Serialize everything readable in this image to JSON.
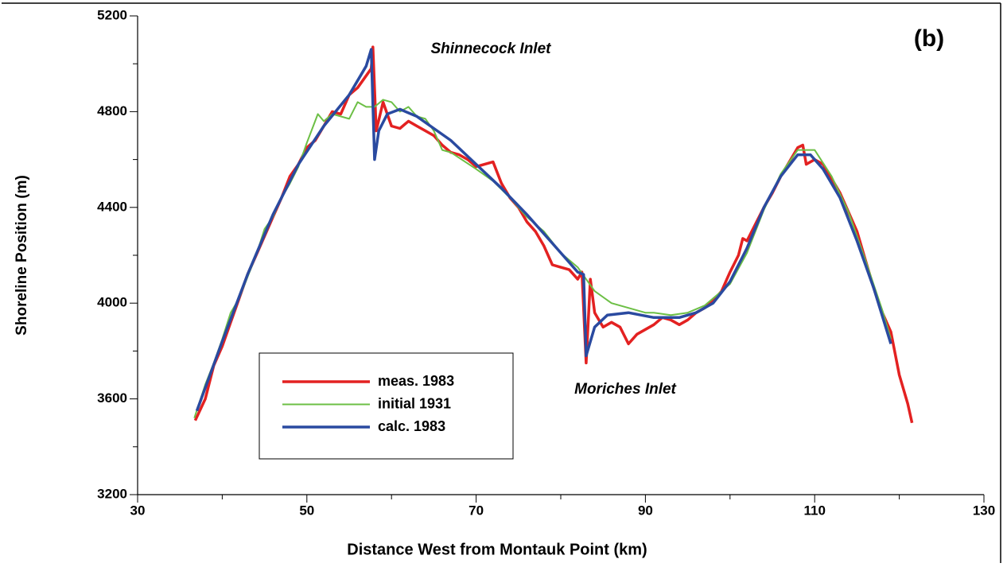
{
  "chart_data": {
    "type": "line",
    "xlabel": "Distance West from Montauk Point (km)",
    "ylabel": "Shoreline Position (m)",
    "annotations": [
      "(b)",
      "Shinnecock Inlet",
      "Moriches Inlet"
    ],
    "xlim": [
      30,
      130
    ],
    "ylim": [
      3200,
      5200
    ],
    "xticks": [
      30,
      50,
      70,
      90,
      110,
      130
    ],
    "xticks_minor": [
      40,
      60,
      80,
      100,
      120
    ],
    "yticks": [
      3200,
      3600,
      4000,
      4400,
      4800,
      5200
    ],
    "yticks_minor": [
      3400,
      3800,
      4200,
      4600,
      5000
    ],
    "grid": false,
    "legend": "lower left",
    "series": [
      {
        "name": "meas. 1983",
        "color": "#e32121",
        "width": 3.5,
        "x": [
          36.8,
          38,
          39,
          40,
          41,
          42,
          43,
          44,
          45,
          46,
          47,
          48,
          49,
          50,
          51,
          52,
          53,
          54,
          55,
          56,
          57,
          57.6,
          57.8,
          58.2,
          59,
          60,
          61,
          62,
          63,
          64,
          65,
          66,
          67,
          68,
          69,
          70,
          71,
          72,
          73,
          74,
          75,
          76,
          77,
          78,
          79,
          80,
          81,
          82,
          82.5,
          83,
          83.5,
          84,
          85,
          86,
          87,
          88,
          89,
          90,
          91,
          92,
          93,
          94,
          95,
          96,
          97,
          98,
          99,
          100,
          101,
          101.5,
          102,
          103,
          104,
          105,
          106,
          107,
          108,
          108.6,
          109,
          110,
          111,
          112,
          113,
          114,
          115,
          116,
          117,
          118,
          119,
          120,
          121,
          121.5
        ],
        "values": [
          3510,
          3600,
          3740,
          3820,
          3920,
          4020,
          4120,
          4200,
          4280,
          4360,
          4440,
          4530,
          4580,
          4650,
          4680,
          4740,
          4800,
          4790,
          4870,
          4900,
          4950,
          4980,
          5070,
          4720,
          4840,
          4740,
          4730,
          4760,
          4740,
          4720,
          4700,
          4660,
          4630,
          4620,
          4600,
          4570,
          4580,
          4590,
          4500,
          4440,
          4400,
          4340,
          4300,
          4240,
          4160,
          4150,
          4140,
          4100,
          4130,
          3750,
          4100,
          3960,
          3900,
          3920,
          3900,
          3830,
          3870,
          3890,
          3910,
          3940,
          3930,
          3910,
          3930,
          3960,
          3980,
          4010,
          4050,
          4130,
          4200,
          4270,
          4260,
          4330,
          4400,
          4460,
          4530,
          4590,
          4650,
          4660,
          4580,
          4600,
          4580,
          4520,
          4460,
          4380,
          4300,
          4180,
          4060,
          3960,
          3880,
          3700,
          3580,
          3500
        ]
      },
      {
        "name": "initial 1931",
        "color": "#6cbf45",
        "width": 2,
        "x": [
          36.7,
          38,
          39,
          40,
          41,
          42,
          43,
          44,
          45,
          46,
          47,
          48,
          49,
          50,
          51.3,
          52,
          53,
          55,
          56,
          57,
          58,
          59,
          60,
          61,
          62,
          63,
          64,
          65,
          66,
          67,
          70,
          72,
          74,
          76,
          78,
          80,
          82,
          83,
          84,
          86,
          88,
          90,
          91,
          93,
          95,
          97,
          100,
          102,
          104,
          106,
          108,
          110,
          112,
          114,
          116,
          118,
          119
        ],
        "values": [
          3520,
          3660,
          3750,
          3850,
          3960,
          4020,
          4110,
          4200,
          4310,
          4360,
          4440,
          4500,
          4570,
          4670,
          4790,
          4760,
          4790,
          4770,
          4840,
          4820,
          4820,
          4850,
          4840,
          4800,
          4820,
          4780,
          4770,
          4720,
          4640,
          4630,
          4560,
          4510,
          4440,
          4360,
          4300,
          4210,
          4150,
          4100,
          4050,
          4000,
          3980,
          3960,
          3960,
          3950,
          3960,
          3990,
          4080,
          4210,
          4390,
          4540,
          4640,
          4640,
          4530,
          4380,
          4180,
          3970,
          3850
        ]
      },
      {
        "name": "calc. 1983",
        "color": "#2a4aa0",
        "width": 3.5,
        "x": [
          37,
          40,
          43,
          46,
          49,
          52,
          55,
          57,
          57.6,
          58,
          58.5,
          59.5,
          61,
          63,
          65,
          67,
          70,
          73,
          76,
          79,
          82,
          82.7,
          83,
          84,
          85.5,
          88,
          91,
          94,
          96,
          98,
          100,
          102,
          104,
          106,
          108,
          109.5,
          111,
          113,
          115,
          117,
          119
        ],
        "values": [
          3550,
          3840,
          4120,
          4370,
          4580,
          4740,
          4870,
          4990,
          5060,
          4600,
          4720,
          4790,
          4810,
          4780,
          4730,
          4680,
          4580,
          4480,
          4370,
          4250,
          4130,
          4120,
          3780,
          3900,
          3950,
          3960,
          3940,
          3940,
          3960,
          4000,
          4090,
          4230,
          4400,
          4530,
          4620,
          4620,
          4560,
          4440,
          4260,
          4060,
          3830
        ]
      }
    ]
  }
}
